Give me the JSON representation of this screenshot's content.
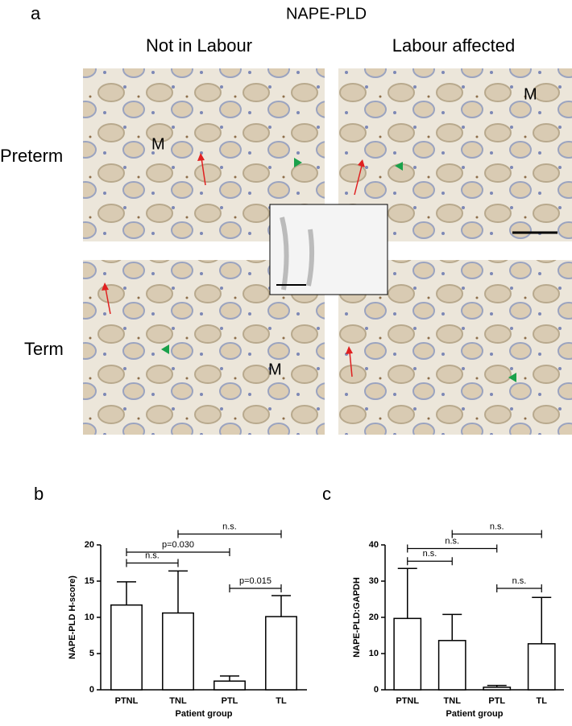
{
  "panel_a": {
    "label": "a",
    "title": "NAPE-PLD",
    "columns": [
      "Not in Labour",
      "Labour affected"
    ],
    "rows": [
      "Preterm",
      "Term"
    ],
    "image_labels": [
      "M",
      "M",
      "M"
    ]
  },
  "chart_data": [
    {
      "type": "bar",
      "panel_label": "b",
      "ylabel": "NAPE-PLD H-score)",
      "xlabel": "Patient group",
      "categories": [
        "PTNL",
        "TNL",
        "PTL",
        "TL"
      ],
      "values": [
        11.7,
        10.6,
        1.2,
        10.1
      ],
      "errors": [
        3.2,
        5.8,
        0.7,
        2.9
      ],
      "ylim": [
        0,
        20
      ],
      "yticks": [
        0,
        5,
        10,
        15,
        20
      ],
      "color": "#ffffff",
      "annotations": [
        {
          "text": "n.s.",
          "between": [
            "TNL",
            "TL"
          ],
          "y": 21.5
        },
        {
          "text": "p=0.030",
          "between": [
            "PTNL",
            "PTL"
          ],
          "y": 19
        },
        {
          "text": "n.s.",
          "between": [
            "PTNL",
            "TNL"
          ],
          "y": 17.5
        },
        {
          "text": "p=0.015",
          "between": [
            "PTL",
            "TL"
          ],
          "y": 14
        }
      ]
    },
    {
      "type": "bar",
      "panel_label": "c",
      "ylabel": "NAPE-PLD:GAPDH",
      "xlabel": "Patient group",
      "categories": [
        "PTNL",
        "TNL",
        "PTL",
        "TL"
      ],
      "values": [
        19.7,
        13.6,
        0.7,
        12.7
      ],
      "errors": [
        13.8,
        7.2,
        0.5,
        12.8
      ],
      "ylim": [
        0,
        40
      ],
      "yticks": [
        0,
        10,
        20,
        30,
        40
      ],
      "color": "#ffffff",
      "annotations": [
        {
          "text": "n.s.",
          "between": [
            "TNL",
            "TL"
          ],
          "y": 43
        },
        {
          "text": "n.s.",
          "between": [
            "PTNL",
            "PTL"
          ],
          "y": 39
        },
        {
          "text": "n.s.",
          "between": [
            "PTNL",
            "TNL"
          ],
          "y": 35.5
        },
        {
          "text": "n.s.",
          "between": [
            "PTL",
            "TL"
          ],
          "y": 28
        }
      ]
    }
  ]
}
